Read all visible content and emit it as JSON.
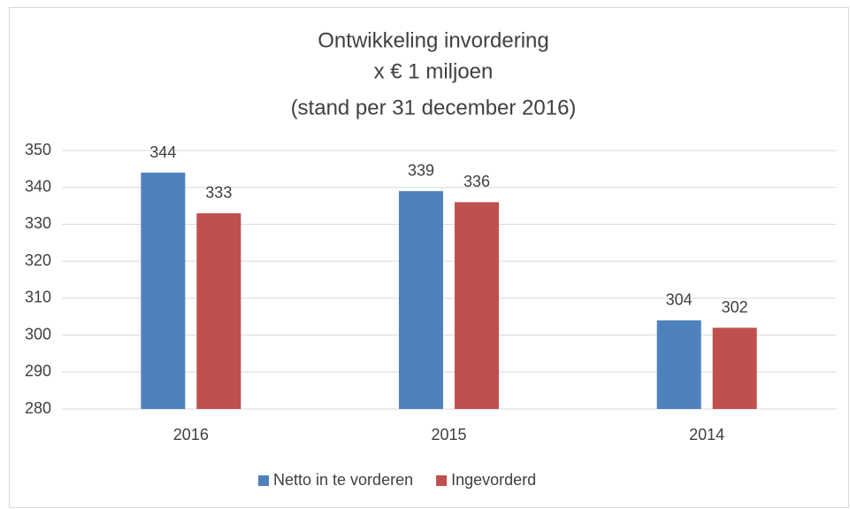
{
  "chart_data": {
    "type": "bar",
    "title": [
      "Ontwikkeling invordering",
      "x € 1 miljoen",
      "(stand per 31 december 2016)"
    ],
    "categories": [
      "2016",
      "2015",
      "2014"
    ],
    "series": [
      {
        "name": "Netto in te vorderen",
        "color": "#4f81bd",
        "values": [
          344,
          339,
          304
        ]
      },
      {
        "name": "Ingevorderd",
        "color": "#c0504d",
        "values": [
          333,
          336,
          302
        ]
      }
    ],
    "ylim": [
      280,
      350
    ],
    "yticks": [
      280,
      290,
      300,
      310,
      320,
      330,
      340,
      350
    ],
    "grid": true,
    "legend": "bottom"
  }
}
